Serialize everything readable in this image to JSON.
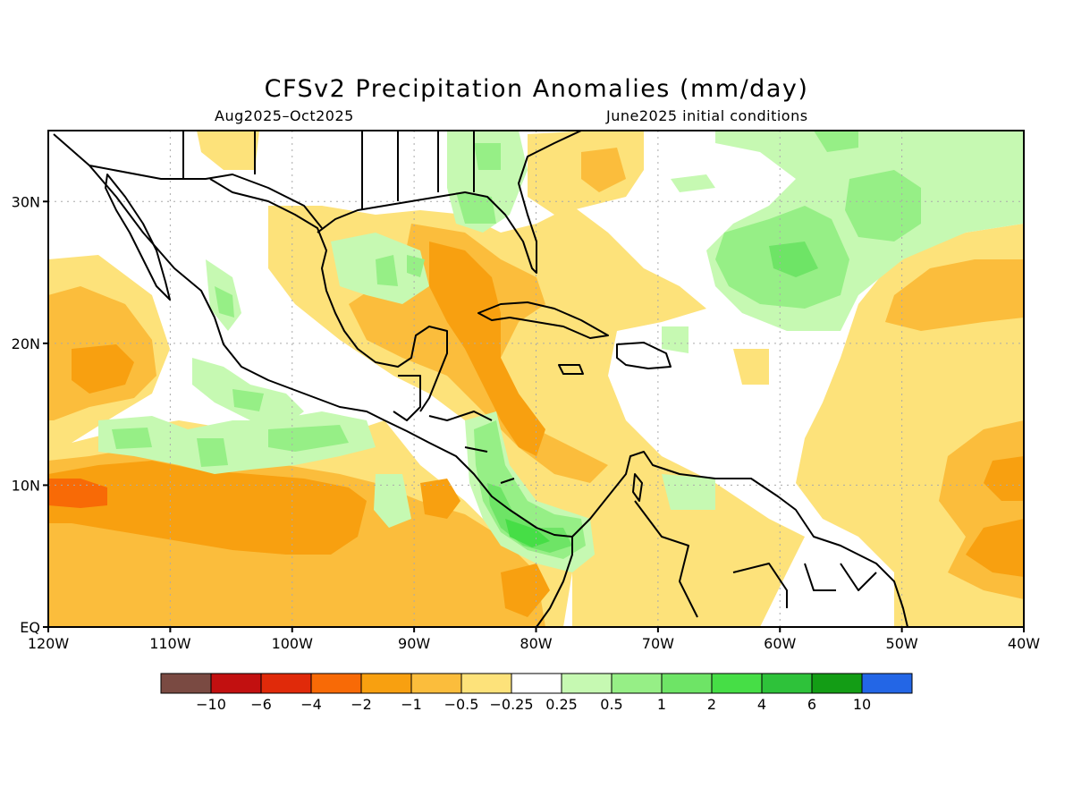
{
  "title": "CFSv2 Precipitation Anomalies (mm/day)",
  "period": "Aug2025–Oct2025",
  "init": "June2025 initial conditions",
  "axes": {
    "lon_ticks": [
      "120W",
      "110W",
      "100W",
      "90W",
      "80W",
      "70W",
      "60W",
      "50W",
      "40W"
    ],
    "lat_ticks": [
      "EQ",
      "10N",
      "20N",
      "30N"
    ]
  },
  "legend": {
    "labels": [
      "−10",
      "−6",
      "−4",
      "−2",
      "−1",
      "−0.5",
      "−0.25",
      "0.25",
      "0.5",
      "1",
      "2",
      "4",
      "6",
      "10"
    ],
    "colors": [
      "#7a4a42",
      "#c21010",
      "#e02a0a",
      "#f86a06",
      "#f8a010",
      "#fbbd3c",
      "#fde27a",
      "#ffffff",
      "#c6f9b2",
      "#96ef86",
      "#6ee466",
      "#46de46",
      "#2ec23a",
      "#139d15",
      "#2366e6"
    ]
  },
  "colors": {
    "dry_light": "#fde27a",
    "dry_mid": "#fbbd3c",
    "dry_strong": "#f8a010",
    "dry_max": "#f86a06",
    "wet_light": "#c6f9b2",
    "wet_mid": "#96ef86",
    "wet_strong": "#6ee466",
    "wet_max": "#46de46"
  }
}
